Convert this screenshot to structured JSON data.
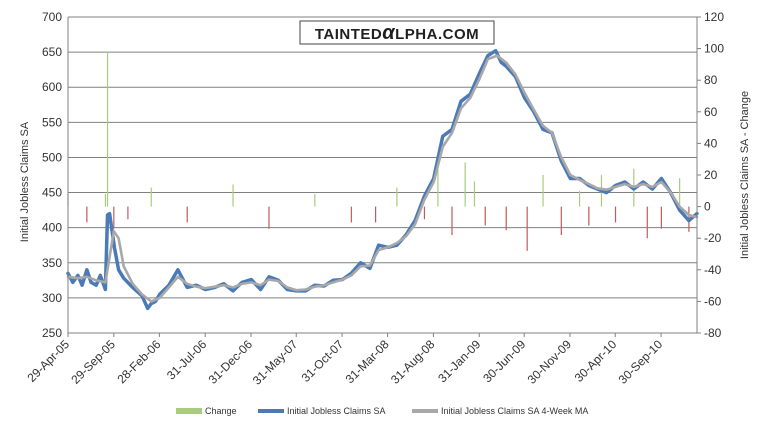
{
  "brand": {
    "prefix": "TAINTED",
    "alpha": "α",
    "suffix": "LPHA.COM",
    "bg": "#ffffff",
    "alpha_color": "#1f1f1f"
  },
  "colors": {
    "change": "#a8cc80",
    "change_neg": "#c25a5a",
    "claims": "#4a7ab8",
    "ma": "#a8a8a8",
    "grid": "#808080",
    "axis": "#808080",
    "text": "#333333"
  },
  "chart_data": {
    "type": "line",
    "title": "",
    "xlabel": "",
    "ylabel": "Initial Jobless Claims SA",
    "y2label": "Initial Jobless Claims SA - Change",
    "ylim": [
      250,
      700
    ],
    "y_ticks": [
      250,
      300,
      350,
      400,
      450,
      500,
      550,
      600,
      650,
      700
    ],
    "y2lim": [
      -80,
      120
    ],
    "y2_ticks": [
      -80,
      -60,
      -40,
      -20,
      0,
      20,
      40,
      60,
      80,
      100,
      120
    ],
    "x_range": [
      "2005-04-29",
      "2011-01-28"
    ],
    "x_ticks": [
      "29-Apr-05",
      "29-Sep-05",
      "28-Feb-06",
      "31-Jul-06",
      "31-Dec-06",
      "31-May-07",
      "31-Oct-07",
      "31-Mar-08",
      "31-Aug-08",
      "31-Jan-09",
      "30-Jun-09",
      "30-Nov-09",
      "30-Apr-10",
      "30-Sep-10"
    ],
    "grid": true,
    "legend_position": "bottom",
    "series": [
      {
        "name": "Change",
        "type": "bar",
        "axis": "y2",
        "x": [
          "2005-04-29",
          "2005-07-01",
          "2005-09-01",
          "2005-09-08",
          "2005-09-29",
          "2005-11-15",
          "2006-02-01",
          "2006-06-01",
          "2006-11-01",
          "2007-03-01",
          "2007-08-01",
          "2007-12-01",
          "2008-02-20",
          "2008-05-01",
          "2008-08-01",
          "2008-09-15",
          "2008-11-01",
          "2008-12-15",
          "2009-01-15",
          "2009-02-20",
          "2009-05-01",
          "2009-07-10",
          "2009-09-01",
          "2009-11-01",
          "2010-01-01",
          "2010-02-01",
          "2010-03-15",
          "2010-05-01",
          "2010-07-01",
          "2010-08-15",
          "2010-10-01",
          "2010-12-01",
          "2011-01-01"
        ],
        "values": [
          8,
          -10,
          8,
          98,
          -14,
          -8,
          12,
          -10,
          14,
          -14,
          8,
          -10,
          -10,
          12,
          -8,
          26,
          -18,
          28,
          16,
          -12,
          -15,
          -28,
          20,
          -18,
          10,
          -12,
          20,
          -10,
          24,
          -20,
          -14,
          18,
          -16
        ]
      },
      {
        "name": "Initial Jobless Claims SA",
        "type": "line",
        "axis": "y",
        "x": [
          "2005-04-29",
          "2005-05-15",
          "2005-06-01",
          "2005-06-15",
          "2005-07-01",
          "2005-07-15",
          "2005-08-01",
          "2005-08-15",
          "2005-09-01",
          "2005-09-08",
          "2005-09-15",
          "2005-10-01",
          "2005-10-15",
          "2005-11-01",
          "2005-12-01",
          "2006-01-01",
          "2006-01-20",
          "2006-02-01",
          "2006-02-15",
          "2006-03-01",
          "2006-04-01",
          "2006-05-01",
          "2006-06-01",
          "2006-07-01",
          "2006-08-01",
          "2006-09-01",
          "2006-10-01",
          "2006-11-01",
          "2006-12-01",
          "2007-01-01",
          "2007-02-01",
          "2007-03-01",
          "2007-04-01",
          "2007-05-01",
          "2007-06-01",
          "2007-07-01",
          "2007-08-01",
          "2007-09-01",
          "2007-10-01",
          "2007-11-01",
          "2007-12-01",
          "2008-01-01",
          "2008-02-01",
          "2008-03-01",
          "2008-04-01",
          "2008-05-01",
          "2008-06-01",
          "2008-07-01",
          "2008-08-01",
          "2008-09-01",
          "2008-10-01",
          "2008-11-01",
          "2008-12-01",
          "2009-01-01",
          "2009-02-01",
          "2009-03-01",
          "2009-03-27",
          "2009-04-15",
          "2009-05-01",
          "2009-06-01",
          "2009-07-01",
          "2009-08-01",
          "2009-09-01",
          "2009-10-01",
          "2009-11-01",
          "2009-12-01",
          "2010-01-01",
          "2010-02-01",
          "2010-03-01",
          "2010-04-01",
          "2010-05-01",
          "2010-06-01",
          "2010-07-01",
          "2010-08-01",
          "2010-09-01",
          "2010-10-01",
          "2010-11-01",
          "2010-12-01",
          "2011-01-01",
          "2011-01-28"
        ],
        "values": [
          335,
          322,
          332,
          318,
          340,
          322,
          318,
          332,
          312,
          418,
          420,
          372,
          340,
          328,
          315,
          303,
          285,
          292,
          295,
          305,
          318,
          340,
          315,
          318,
          312,
          315,
          320,
          310,
          322,
          326,
          312,
          330,
          325,
          312,
          310,
          310,
          318,
          317,
          325,
          326,
          335,
          350,
          342,
          375,
          372,
          375,
          390,
          410,
          445,
          470,
          530,
          540,
          580,
          590,
          620,
          645,
          652,
          635,
          630,
          615,
          585,
          565,
          540,
          535,
          495,
          470,
          470,
          460,
          455,
          450,
          460,
          465,
          455,
          465,
          455,
          470,
          450,
          425,
          410,
          420
        ]
      },
      {
        "name": "Initial Jobless Claims SA 4-Week MA",
        "type": "line",
        "axis": "y",
        "x": [
          "2005-04-29",
          "2005-06-01",
          "2005-07-01",
          "2005-08-01",
          "2005-09-01",
          "2005-09-29",
          "2005-10-15",
          "2005-11-01",
          "2005-12-01",
          "2006-01-01",
          "2006-02-01",
          "2006-03-01",
          "2006-04-01",
          "2006-05-01",
          "2006-06-01",
          "2006-07-01",
          "2006-08-01",
          "2006-09-01",
          "2006-10-01",
          "2006-11-01",
          "2006-12-01",
          "2007-01-01",
          "2007-02-01",
          "2007-03-01",
          "2007-04-01",
          "2007-05-01",
          "2007-06-01",
          "2007-07-01",
          "2007-08-01",
          "2007-09-01",
          "2007-10-01",
          "2007-11-01",
          "2007-12-01",
          "2008-01-01",
          "2008-02-01",
          "2008-03-01",
          "2008-04-01",
          "2008-05-01",
          "2008-06-01",
          "2008-07-01",
          "2008-08-01",
          "2008-09-01",
          "2008-10-01",
          "2008-11-01",
          "2008-12-01",
          "2009-01-01",
          "2009-02-01",
          "2009-03-01",
          "2009-04-01",
          "2009-05-01",
          "2009-06-01",
          "2009-07-01",
          "2009-08-01",
          "2009-09-01",
          "2009-10-01",
          "2009-11-01",
          "2009-12-01",
          "2010-01-01",
          "2010-02-01",
          "2010-03-01",
          "2010-04-01",
          "2010-05-01",
          "2010-06-01",
          "2010-07-01",
          "2010-08-01",
          "2010-09-01",
          "2010-10-01",
          "2010-11-01",
          "2010-12-01",
          "2011-01-01",
          "2011-01-28"
        ],
        "values": [
          330,
          328,
          330,
          325,
          322,
          395,
          385,
          345,
          320,
          305,
          295,
          300,
          315,
          330,
          320,
          316,
          314,
          316,
          318,
          315,
          320,
          322,
          318,
          326,
          324,
          315,
          311,
          312,
          316,
          318,
          322,
          326,
          332,
          345,
          346,
          368,
          372,
          378,
          388,
          405,
          440,
          465,
          515,
          535,
          570,
          585,
          612,
          640,
          645,
          635,
          618,
          592,
          568,
          545,
          535,
          500,
          475,
          468,
          462,
          456,
          454,
          458,
          462,
          458,
          462,
          458,
          465,
          450,
          430,
          418,
          415
        ]
      }
    ]
  }
}
